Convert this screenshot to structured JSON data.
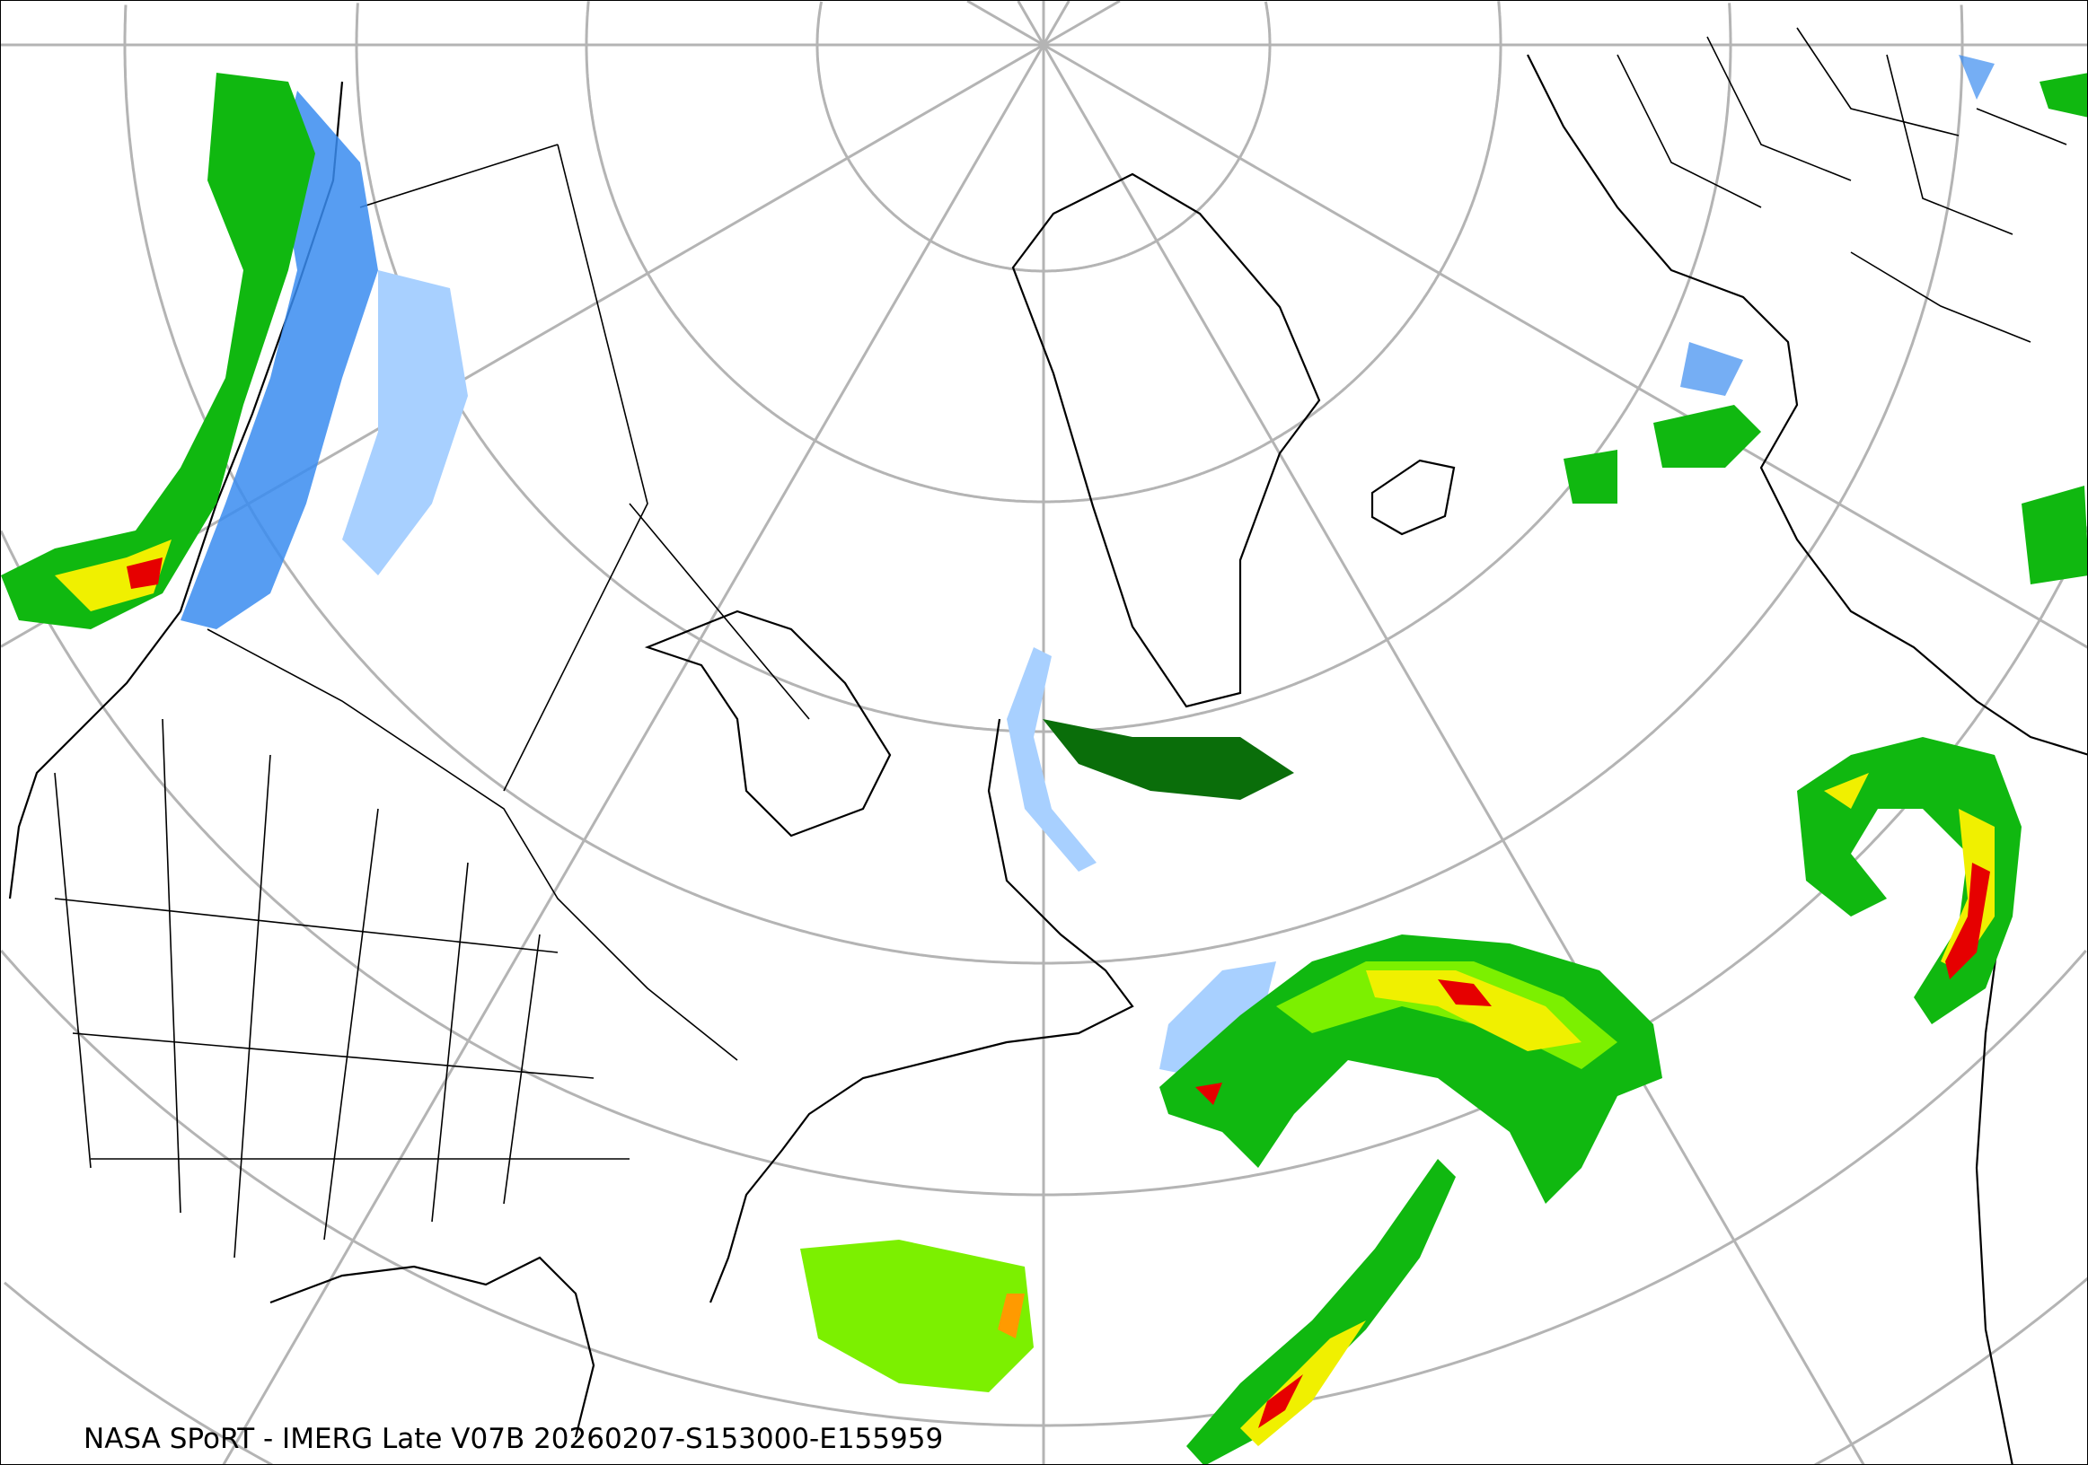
{
  "caption": "NASA SPoRT - IMERG Late V07B 20260207-S153000-E155959",
  "projection": "north-polar-stereographic",
  "graticule": {
    "color": "#b4b4b4"
  },
  "precip_colors": {
    "light_blue": "#a8d0ff",
    "blue": "#3a8cf0",
    "dark_green": "#0a6e0a",
    "green": "#10b810",
    "light_green": "#7cf000",
    "yellow": "#f0f000",
    "orange": "#ff9a00",
    "red": "#e60000"
  }
}
